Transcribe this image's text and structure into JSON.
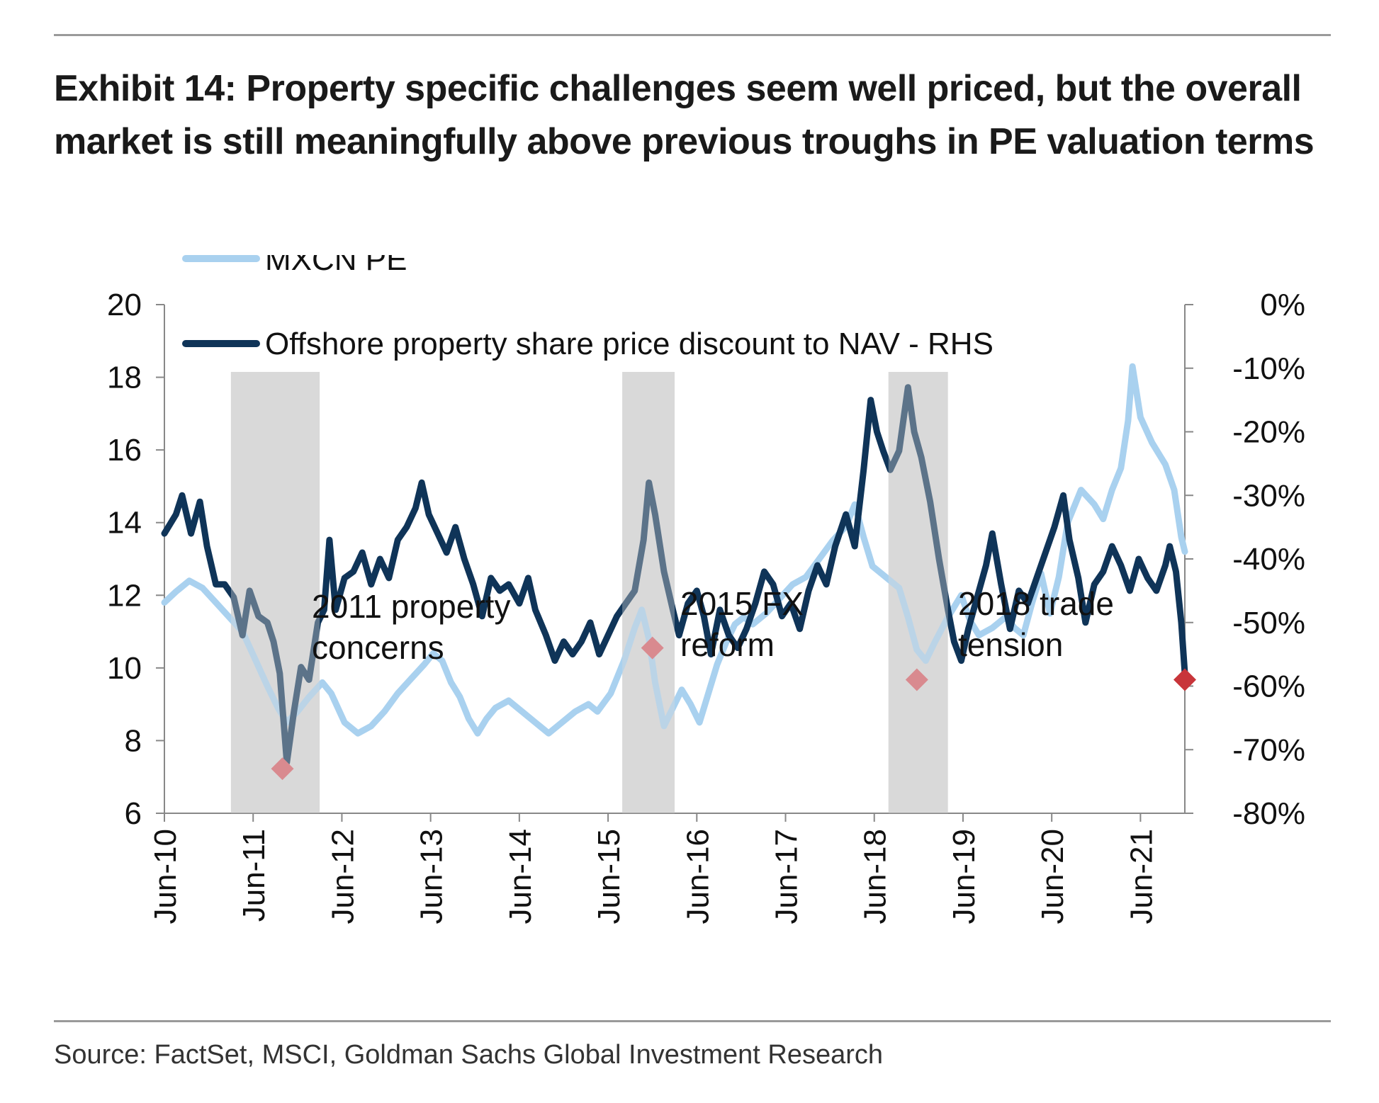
{
  "title": "Exhibit 14: Property specific challenges seem well priced, but the overall market is still meaningfully above previous troughs in PE valuation terms",
  "source": "Source: FactSet, MSCI, Goldman Sachs Global Investment Research",
  "colors": {
    "pe": "#a9d1ef",
    "discount": "#0f3458",
    "shade": "#d9d9d9",
    "marker": "#d98a8f",
    "marker_last": "#c8353a",
    "axis": "#888888"
  },
  "chart_data": {
    "type": "line",
    "x_ticks": [
      "Jun-10",
      "Jun-11",
      "Jun-12",
      "Jun-13",
      "Jun-14",
      "Jun-15",
      "Jun-16",
      "Jun-17",
      "Jun-18",
      "Jun-19",
      "Jun-20",
      "Jun-21"
    ],
    "x_range": [
      2010.42,
      2021.92
    ],
    "y_left": {
      "ticks": [
        "20",
        "18",
        "16",
        "14",
        "12",
        "10",
        "8",
        "6"
      ],
      "range": [
        6,
        20
      ]
    },
    "y_right": {
      "ticks": [
        "0%",
        "-10%",
        "-20%",
        "-30%",
        "-40%",
        "-50%",
        "-60%",
        "-70%",
        "-80%"
      ],
      "range": [
        -80,
        0
      ],
      "unit": "%"
    },
    "shaded_periods": [
      {
        "start": 2011.17,
        "end": 2012.17,
        "label_lines": [
          "2011 property",
          "concerns"
        ]
      },
      {
        "start": 2015.58,
        "end": 2016.17,
        "label_lines": [
          "2015 FX",
          "reform"
        ]
      },
      {
        "start": 2018.58,
        "end": 2019.25,
        "label_lines": [
          "2018 trade",
          "tension"
        ]
      }
    ],
    "series": [
      {
        "name": "MXCN PE",
        "axis": "left",
        "points": [
          [
            2010.42,
            11.8
          ],
          [
            2010.55,
            12.1
          ],
          [
            2010.7,
            12.4
          ],
          [
            2010.85,
            12.2
          ],
          [
            2011.0,
            11.8
          ],
          [
            2011.15,
            11.4
          ],
          [
            2011.3,
            11.0
          ],
          [
            2011.45,
            10.2
          ],
          [
            2011.58,
            9.5
          ],
          [
            2011.7,
            8.9
          ],
          [
            2011.8,
            8.5
          ],
          [
            2011.92,
            8.8
          ],
          [
            2012.05,
            9.2
          ],
          [
            2012.2,
            9.6
          ],
          [
            2012.3,
            9.3
          ],
          [
            2012.45,
            8.5
          ],
          [
            2012.6,
            8.2
          ],
          [
            2012.75,
            8.4
          ],
          [
            2012.9,
            8.8
          ],
          [
            2013.05,
            9.3
          ],
          [
            2013.2,
            9.7
          ],
          [
            2013.35,
            10.1
          ],
          [
            2013.45,
            10.4
          ],
          [
            2013.55,
            10.2
          ],
          [
            2013.65,
            9.6
          ],
          [
            2013.75,
            9.2
          ],
          [
            2013.85,
            8.6
          ],
          [
            2013.95,
            8.2
          ],
          [
            2014.05,
            8.6
          ],
          [
            2014.15,
            8.9
          ],
          [
            2014.3,
            9.1
          ],
          [
            2014.45,
            8.8
          ],
          [
            2014.6,
            8.5
          ],
          [
            2014.75,
            8.2
          ],
          [
            2014.9,
            8.5
          ],
          [
            2015.05,
            8.8
          ],
          [
            2015.2,
            9.0
          ],
          [
            2015.3,
            8.8
          ],
          [
            2015.45,
            9.3
          ],
          [
            2015.6,
            10.2
          ],
          [
            2015.72,
            11.1
          ],
          [
            2015.8,
            11.6
          ],
          [
            2015.88,
            10.8
          ],
          [
            2015.95,
            9.6
          ],
          [
            2016.05,
            8.4
          ],
          [
            2016.15,
            8.9
          ],
          [
            2016.25,
            9.4
          ],
          [
            2016.35,
            9.0
          ],
          [
            2016.45,
            8.5
          ],
          [
            2016.55,
            9.3
          ],
          [
            2016.65,
            10.1
          ],
          [
            2016.75,
            10.7
          ],
          [
            2016.85,
            11.2
          ],
          [
            2016.95,
            11.4
          ],
          [
            2017.05,
            11.2
          ],
          [
            2017.2,
            11.5
          ],
          [
            2017.35,
            11.9
          ],
          [
            2017.5,
            12.3
          ],
          [
            2017.65,
            12.5
          ],
          [
            2017.8,
            13.0
          ],
          [
            2017.95,
            13.5
          ],
          [
            2018.1,
            13.9
          ],
          [
            2018.2,
            14.5
          ],
          [
            2018.3,
            13.6
          ],
          [
            2018.4,
            12.8
          ],
          [
            2018.55,
            12.5
          ],
          [
            2018.7,
            12.2
          ],
          [
            2018.8,
            11.4
          ],
          [
            2018.9,
            10.5
          ],
          [
            2019.0,
            10.2
          ],
          [
            2019.1,
            10.7
          ],
          [
            2019.25,
            11.4
          ],
          [
            2019.4,
            12.0
          ],
          [
            2019.5,
            11.3
          ],
          [
            2019.6,
            10.9
          ],
          [
            2019.75,
            11.1
          ],
          [
            2019.9,
            11.4
          ],
          [
            2020.0,
            11.1
          ],
          [
            2020.1,
            10.9
          ],
          [
            2020.2,
            11.8
          ],
          [
            2020.3,
            12.6
          ],
          [
            2020.4,
            11.5
          ],
          [
            2020.5,
            12.5
          ],
          [
            2020.6,
            14.0
          ],
          [
            2020.75,
            14.9
          ],
          [
            2020.9,
            14.5
          ],
          [
            2021.0,
            14.1
          ],
          [
            2021.1,
            14.9
          ],
          [
            2021.2,
            15.5
          ],
          [
            2021.28,
            16.8
          ],
          [
            2021.33,
            18.3
          ],
          [
            2021.42,
            16.9
          ],
          [
            2021.55,
            16.2
          ],
          [
            2021.7,
            15.6
          ],
          [
            2021.8,
            14.9
          ],
          [
            2021.88,
            13.6
          ],
          [
            2021.92,
            13.2
          ]
        ]
      },
      {
        "name": "Offshore property share price discount to NAV - RHS",
        "axis": "right",
        "points": [
          [
            2010.42,
            -36
          ],
          [
            2010.55,
            -33
          ],
          [
            2010.62,
            -30
          ],
          [
            2010.72,
            -36
          ],
          [
            2010.82,
            -31
          ],
          [
            2010.9,
            -38
          ],
          [
            2011.0,
            -44
          ],
          [
            2011.1,
            -44
          ],
          [
            2011.2,
            -46
          ],
          [
            2011.3,
            -52
          ],
          [
            2011.38,
            -45
          ],
          [
            2011.48,
            -49
          ],
          [
            2011.58,
            -50
          ],
          [
            2011.65,
            -53
          ],
          [
            2011.72,
            -58
          ],
          [
            2011.8,
            -72
          ],
          [
            2011.88,
            -64
          ],
          [
            2011.96,
            -57
          ],
          [
            2012.05,
            -59
          ],
          [
            2012.15,
            -50
          ],
          [
            2012.22,
            -48
          ],
          [
            2012.28,
            -37
          ],
          [
            2012.35,
            -48
          ],
          [
            2012.45,
            -43
          ],
          [
            2012.55,
            -42
          ],
          [
            2012.65,
            -39
          ],
          [
            2012.75,
            -44
          ],
          [
            2012.85,
            -40
          ],
          [
            2012.95,
            -43
          ],
          [
            2013.05,
            -37
          ],
          [
            2013.15,
            -35
          ],
          [
            2013.25,
            -32
          ],
          [
            2013.32,
            -28
          ],
          [
            2013.4,
            -33
          ],
          [
            2013.5,
            -36
          ],
          [
            2013.6,
            -39
          ],
          [
            2013.7,
            -35
          ],
          [
            2013.8,
            -40
          ],
          [
            2013.9,
            -44
          ],
          [
            2014.0,
            -49
          ],
          [
            2014.1,
            -43
          ],
          [
            2014.2,
            -45
          ],
          [
            2014.3,
            -44
          ],
          [
            2014.42,
            -47
          ],
          [
            2014.52,
            -43
          ],
          [
            2014.6,
            -48
          ],
          [
            2014.72,
            -52
          ],
          [
            2014.82,
            -56
          ],
          [
            2014.92,
            -53
          ],
          [
            2015.02,
            -55
          ],
          [
            2015.12,
            -53
          ],
          [
            2015.22,
            -50
          ],
          [
            2015.32,
            -55
          ],
          [
            2015.42,
            -52
          ],
          [
            2015.52,
            -49
          ],
          [
            2015.62,
            -47
          ],
          [
            2015.72,
            -45
          ],
          [
            2015.82,
            -37
          ],
          [
            2015.88,
            -28
          ],
          [
            2015.95,
            -33
          ],
          [
            2016.05,
            -42
          ],
          [
            2016.15,
            -48
          ],
          [
            2016.22,
            -52
          ],
          [
            2016.32,
            -47
          ],
          [
            2016.42,
            -45
          ],
          [
            2016.5,
            -49
          ],
          [
            2016.58,
            -55
          ],
          [
            2016.68,
            -48
          ],
          [
            2016.78,
            -52
          ],
          [
            2016.88,
            -54
          ],
          [
            2016.98,
            -51
          ],
          [
            2017.08,
            -47
          ],
          [
            2017.18,
            -42
          ],
          [
            2017.28,
            -44
          ],
          [
            2017.38,
            -49
          ],
          [
            2017.48,
            -47
          ],
          [
            2017.58,
            -51
          ],
          [
            2017.68,
            -45
          ],
          [
            2017.78,
            -41
          ],
          [
            2017.88,
            -44
          ],
          [
            2017.98,
            -38
          ],
          [
            2018.1,
            -33
          ],
          [
            2018.2,
            -38
          ],
          [
            2018.3,
            -26
          ],
          [
            2018.38,
            -15
          ],
          [
            2018.45,
            -20
          ],
          [
            2018.52,
            -23
          ],
          [
            2018.6,
            -26
          ],
          [
            2018.7,
            -23
          ],
          [
            2018.8,
            -13
          ],
          [
            2018.87,
            -20
          ],
          [
            2018.95,
            -24
          ],
          [
            2019.05,
            -31
          ],
          [
            2019.15,
            -40
          ],
          [
            2019.25,
            -48
          ],
          [
            2019.32,
            -53
          ],
          [
            2019.4,
            -56
          ],
          [
            2019.48,
            -51
          ],
          [
            2019.58,
            -46
          ],
          [
            2019.68,
            -41
          ],
          [
            2019.75,
            -36
          ],
          [
            2019.85,
            -44
          ],
          [
            2019.95,
            -51
          ],
          [
            2020.05,
            -45
          ],
          [
            2020.15,
            -47
          ],
          [
            2020.25,
            -43
          ],
          [
            2020.35,
            -39
          ],
          [
            2020.45,
            -35
          ],
          [
            2020.55,
            -30
          ],
          [
            2020.62,
            -37
          ],
          [
            2020.72,
            -43
          ],
          [
            2020.8,
            -50
          ],
          [
            2020.9,
            -44
          ],
          [
            2021.0,
            -42
          ],
          [
            2021.1,
            -38
          ],
          [
            2021.2,
            -41
          ],
          [
            2021.3,
            -45
          ],
          [
            2021.4,
            -40
          ],
          [
            2021.5,
            -43
          ],
          [
            2021.6,
            -45
          ],
          [
            2021.7,
            -41
          ],
          [
            2021.75,
            -38
          ],
          [
            2021.82,
            -42
          ],
          [
            2021.88,
            -50
          ],
          [
            2021.92,
            -58
          ]
        ]
      }
    ],
    "markers": [
      {
        "x": 2011.75,
        "y_right": -73,
        "last": false
      },
      {
        "x": 2015.92,
        "y_right": -54,
        "last": false
      },
      {
        "x": 2018.9,
        "y_right": -59,
        "last": false
      },
      {
        "x": 2021.92,
        "y_right": -59,
        "last": true
      }
    ]
  }
}
